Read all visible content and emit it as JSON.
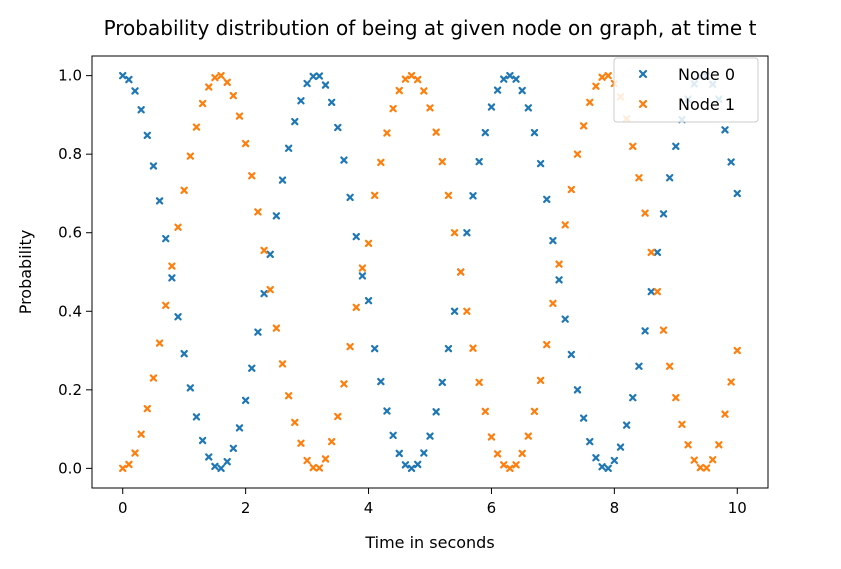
{
  "chart_data": {
    "type": "scatter",
    "title": "Probability distribution of being at given node on graph, at time t",
    "xlabel": "Time in seconds",
    "ylabel": "Probability",
    "xlim": [
      -0.5,
      10.5
    ],
    "ylim": [
      -0.05,
      1.05
    ],
    "xticks": [
      0,
      2,
      4,
      6,
      8,
      10
    ],
    "xtick_labels": [
      "0",
      "2",
      "4",
      "6",
      "8",
      "10"
    ],
    "yticks": [
      0.0,
      0.2,
      0.4,
      0.6,
      0.8,
      1.0
    ],
    "ytick_labels": [
      "0.0",
      "0.2",
      "0.4",
      "0.6",
      "0.8",
      "1.0"
    ],
    "grid": false,
    "legend_position": "top-right",
    "marker": "x",
    "series": [
      {
        "name": "Node 0",
        "color": "#1f77b4",
        "x": [
          0.0,
          0.1,
          0.2,
          0.3,
          0.4,
          0.5,
          0.6,
          0.7,
          0.8,
          0.9,
          1.0,
          1.1,
          1.2,
          1.3,
          1.4,
          1.5,
          1.6,
          1.7,
          1.8,
          1.9,
          2.0,
          2.1,
          2.2,
          2.3,
          2.4,
          2.5,
          2.6,
          2.7,
          2.8,
          2.9,
          3.0,
          3.1,
          3.2,
          3.3,
          3.4,
          3.5,
          3.6,
          3.7,
          3.8,
          3.9,
          4.0,
          4.1,
          4.2,
          4.3,
          4.4,
          4.5,
          4.6,
          4.7,
          4.8,
          4.9,
          5.0,
          5.1,
          5.2,
          5.3,
          5.4,
          5.5,
          5.6,
          5.7,
          5.8,
          5.9,
          6.0,
          6.1,
          6.2,
          6.3,
          6.4,
          6.5,
          6.6,
          6.7,
          6.8,
          6.9,
          7.0,
          7.1,
          7.2,
          7.3,
          7.4,
          7.5,
          7.6,
          7.7,
          7.8,
          7.9,
          8.0,
          8.1,
          8.2,
          8.3,
          8.4,
          8.5,
          8.6,
          8.7,
          8.8,
          8.9,
          9.0,
          9.1,
          9.2,
          9.3,
          9.4,
          9.5,
          9.6,
          9.7,
          9.8,
          9.9,
          10.0
        ],
        "y": [
          1.0,
          0.99,
          0.961,
          0.913,
          0.848,
          0.77,
          0.681,
          0.585,
          0.485,
          0.386,
          0.292,
          0.205,
          0.131,
          0.071,
          0.029,
          0.005,
          0.0,
          0.017,
          0.051,
          0.103,
          0.173,
          0.255,
          0.347,
          0.445,
          0.545,
          0.643,
          0.734,
          0.815,
          0.883,
          0.936,
          0.98,
          0.998,
          0.999,
          0.976,
          0.932,
          0.868,
          0.785,
          0.69,
          0.59,
          0.49,
          0.427,
          0.305,
          0.221,
          0.146,
          0.084,
          0.038,
          0.009,
          0.0,
          0.01,
          0.039,
          0.082,
          0.144,
          0.219,
          0.305,
          0.4,
          0.5,
          0.6,
          0.694,
          0.781,
          0.855,
          0.92,
          0.963,
          0.991,
          1.0,
          0.991,
          0.962,
          0.918,
          0.855,
          0.776,
          0.685,
          0.58,
          0.48,
          0.38,
          0.29,
          0.2,
          0.128,
          0.068,
          0.027,
          0.004,
          0.0,
          0.02,
          0.054,
          0.11,
          0.18,
          0.26,
          0.35,
          0.45,
          0.55,
          0.648,
          0.74,
          0.82,
          0.888,
          0.94,
          0.979,
          0.998,
          0.999,
          0.978,
          0.94,
          0.862,
          0.78,
          0.7
        ]
      },
      {
        "name": "Node 1",
        "color": "#ff7f0e",
        "x": [
          0.0,
          0.1,
          0.2,
          0.3,
          0.4,
          0.5,
          0.6,
          0.7,
          0.8,
          0.9,
          1.0,
          1.1,
          1.2,
          1.3,
          1.4,
          1.5,
          1.6,
          1.7,
          1.8,
          1.9,
          2.0,
          2.1,
          2.2,
          2.3,
          2.4,
          2.5,
          2.6,
          2.7,
          2.8,
          2.9,
          3.0,
          3.1,
          3.2,
          3.3,
          3.4,
          3.5,
          3.6,
          3.7,
          3.8,
          3.9,
          4.0,
          4.1,
          4.2,
          4.3,
          4.4,
          4.5,
          4.6,
          4.7,
          4.8,
          4.9,
          5.0,
          5.1,
          5.2,
          5.3,
          5.4,
          5.5,
          5.6,
          5.7,
          5.8,
          5.9,
          6.0,
          6.1,
          6.2,
          6.3,
          6.4,
          6.5,
          6.6,
          6.7,
          6.8,
          6.9,
          7.0,
          7.1,
          7.2,
          7.3,
          7.4,
          7.5,
          7.6,
          7.7,
          7.8,
          7.9,
          8.0,
          8.1,
          8.2,
          8.3,
          8.4,
          8.5,
          8.6,
          8.7,
          8.8,
          8.9,
          9.0,
          9.1,
          9.2,
          9.3,
          9.4,
          9.5,
          9.6,
          9.7,
          9.8,
          9.9,
          10.0
        ],
        "y": [
          0.0,
          0.01,
          0.039,
          0.087,
          0.152,
          0.23,
          0.319,
          0.415,
          0.515,
          0.614,
          0.708,
          0.795,
          0.869,
          0.929,
          0.971,
          0.995,
          1.0,
          0.983,
          0.949,
          0.897,
          0.827,
          0.745,
          0.653,
          0.555,
          0.455,
          0.357,
          0.266,
          0.185,
          0.117,
          0.064,
          0.02,
          0.002,
          0.001,
          0.024,
          0.068,
          0.132,
          0.215,
          0.31,
          0.41,
          0.51,
          0.573,
          0.695,
          0.779,
          0.854,
          0.916,
          0.962,
          0.991,
          1.0,
          0.99,
          0.961,
          0.918,
          0.856,
          0.781,
          0.695,
          0.6,
          0.5,
          0.4,
          0.306,
          0.219,
          0.145,
          0.08,
          0.037,
          0.009,
          0.0,
          0.009,
          0.038,
          0.082,
          0.145,
          0.224,
          0.315,
          0.42,
          0.52,
          0.62,
          0.71,
          0.8,
          0.872,
          0.932,
          0.973,
          0.996,
          1.0,
          0.98,
          0.946,
          0.89,
          0.82,
          0.74,
          0.65,
          0.55,
          0.45,
          0.352,
          0.26,
          0.18,
          0.112,
          0.06,
          0.021,
          0.002,
          0.001,
          0.022,
          0.06,
          0.138,
          0.22,
          0.3
        ]
      }
    ]
  }
}
